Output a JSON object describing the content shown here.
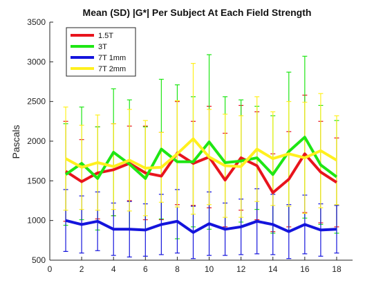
{
  "chart_data": {
    "type": "line",
    "title": "Mean (SD) |G*| Per Subject At Each Field Strength",
    "xlabel": "",
    "ylabel": "Pascals",
    "xlim": [
      0,
      19
    ],
    "ylim": [
      500,
      3500
    ],
    "x_ticks": [
      0,
      2,
      4,
      6,
      8,
      10,
      12,
      14,
      16,
      18
    ],
    "y_ticks": [
      500,
      1000,
      1500,
      2000,
      2500,
      3000,
      3500
    ],
    "grid": false,
    "legend_position": "top-left",
    "x": [
      1,
      2,
      3,
      4,
      5,
      6,
      7,
      8,
      9,
      10,
      11,
      12,
      13,
      14,
      15,
      16,
      17,
      18
    ],
    "series": [
      {
        "name": "1.5T",
        "color": "#e8141d",
        "values": [
          1620,
          1490,
          1600,
          1640,
          1720,
          1600,
          1560,
          1850,
          1720,
          1800,
          1510,
          1790,
          1690,
          1350,
          1520,
          1840,
          1610,
          1480
        ],
        "sd": [
          630,
          530,
          580,
          580,
          470,
          590,
          550,
          650,
          530,
          640,
          590,
          660,
          680,
          490,
          600,
          740,
          640,
          560
        ]
      },
      {
        "name": "3T",
        "color": "#1ee614",
        "values": [
          1580,
          1720,
          1530,
          1860,
          1710,
          1530,
          1900,
          1740,
          1740,
          1990,
          1730,
          1750,
          1790,
          1580,
          1870,
          2050,
          1700,
          1550
        ],
        "sd": [
          640,
          710,
          650,
          800,
          810,
          650,
          880,
          970,
          820,
          1100,
          830,
          770,
          650,
          740,
          1000,
          1020,
          750,
          710
        ]
      },
      {
        "name": "7T 1mm",
        "color": "#1414dc",
        "values": [
          1000,
          950,
          990,
          890,
          890,
          880,
          950,
          990,
          850,
          960,
          890,
          920,
          990,
          950,
          860,
          950,
          880,
          890
        ],
        "sd": [
          390,
          360,
          370,
          330,
          350,
          330,
          380,
          400,
          330,
          400,
          330,
          350,
          410,
          380,
          340,
          370,
          330,
          300
        ]
      },
      {
        "name": "7T 2mm",
        "color": "#fff01e",
        "values": [
          1780,
          1670,
          1730,
          1680,
          1760,
          1660,
          1670,
          1840,
          2030,
          1800,
          1690,
          1680,
          1900,
          1780,
          1840,
          1790,
          1880,
          1760
        ],
        "sd": [
          650,
          530,
          600,
          540,
          640,
          600,
          440,
          670,
          950,
          600,
          650,
          640,
          660,
          590,
          660,
          700,
          720,
          560
        ]
      }
    ]
  }
}
